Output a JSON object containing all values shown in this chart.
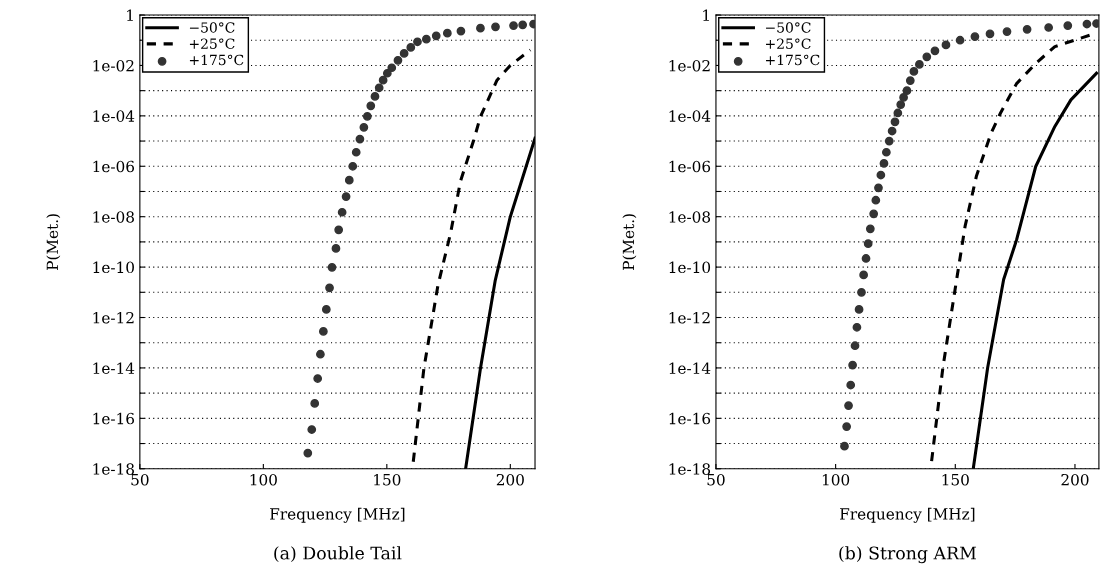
{
  "chart_data": [
    {
      "type": "line",
      "title": "(a) Double Tail",
      "xlabel": "Frequency [MHz]",
      "ylabel": "P(Met.)",
      "log": "y",
      "grid": "y",
      "legend": "top left",
      "xlim": [
        50,
        210
      ],
      "xticks": [
        50,
        100,
        150,
        200
      ],
      "ylim": [
        1e-18,
        1
      ],
      "yticks": [
        1,
        {
          "value": 0.1,
          "label": null
        },
        {
          "value": 0.01,
          "label": "1e-02"
        },
        {
          "value": 0.001,
          "label": null
        },
        {
          "value": 0.0001,
          "label": "1e-04"
        },
        {
          "value": 1e-05,
          "label": null
        },
        {
          "value": 1e-06,
          "label": "1e-06"
        },
        {
          "value": 1e-07,
          "label": null
        },
        {
          "value": 1e-08,
          "label": "1e-08"
        },
        {
          "value": 1e-09,
          "label": null
        },
        {
          "value": 1e-10,
          "label": "1e-10"
        },
        {
          "value": 1e-11,
          "label": null
        },
        {
          "value": 1e-12,
          "label": "1e-12"
        },
        {
          "value": 1e-13,
          "label": null
        },
        {
          "value": 1e-14,
          "label": "1e-14"
        },
        {
          "value": 1e-15,
          "label": null
        },
        {
          "value": 1e-16,
          "label": "1e-16"
        },
        {
          "value": 1e-17,
          "label": null
        },
        {
          "value": 1e-18,
          "label": "1e-18"
        }
      ],
      "series": [
        {
          "name": "−50°C",
          "line_style": "solid",
          "color": "#000000",
          "x": [
            181.9,
            187.9,
            193.9,
            200.0,
            210
          ],
          "values": [
            1e-18,
            9.5e-15,
            3e-11,
            1e-08,
            1.3e-05
          ]
        },
        {
          "name": "+25°C",
          "line_style": "dashed",
          "color": "#000000",
          "x": [
            160.7,
            165.0,
            170.7,
            175.8,
            179.8,
            185.2,
            187.9,
            194.6,
            200.0,
            208.1
          ],
          "values": [
            1.9e-18,
            9.5e-15,
            1.9e-11,
            2.2e-09,
            2.5e-07,
            1.1e-05,
            9.3e-05,
            0.0026,
            0.01,
            0.041
          ]
        },
        {
          "name": "+175°C",
          "type": "scatter",
          "marker": "circle",
          "color": "#333333",
          "x": [
            118.0,
            119.6,
            120.8,
            122.0,
            123.1,
            124.3,
            125.5,
            126.8,
            127.8,
            129.4,
            130.5,
            131.9,
            133.5,
            134.8,
            136.2,
            137.6,
            139.1,
            140.7,
            142.1,
            143.5,
            145.2,
            146.9,
            148.5,
            150.2,
            152.0,
            154.5,
            157.0,
            159.7,
            162.4,
            166,
            170,
            174.5,
            180,
            187.9,
            194,
            201.3,
            205,
            209.4
          ],
          "values": [
            4.2e-18,
            3.6e-17,
            3.9e-16,
            3.8e-15,
            3.5e-14,
            2.8e-13,
            2.1e-12,
            1.5e-11,
            9.8e-11,
            5.5e-10,
            3e-09,
            1.5e-08,
            6.3e-08,
            2.8e-07,
            1e-06,
            3.6e-06,
            1.2e-05,
            3.5e-05,
            9.5e-05,
            0.00025,
            0.00059,
            0.0013,
            0.0026,
            0.0049,
            0.0081,
            0.016,
            0.03,
            0.052,
            0.087,
            0.11,
            0.15,
            0.19,
            0.23,
            0.3,
            0.34,
            0.38,
            0.41,
            0.44
          ]
        }
      ]
    },
    {
      "type": "line",
      "title": "(b) Strong ARM",
      "xlabel": "Frequency [MHz]",
      "ylabel": "P(Met.)",
      "log": "y",
      "grid": "y",
      "legend": "top left",
      "xlim": [
        50,
        210
      ],
      "xticks": [
        50,
        100,
        150,
        200
      ],
      "ylim": [
        1e-18,
        1
      ],
      "yticks": [
        1,
        {
          "value": 0.1,
          "label": null
        },
        {
          "value": 0.01,
          "label": "1e-02"
        },
        {
          "value": 0.001,
          "label": null
        },
        {
          "value": 0.0001,
          "label": "1e-04"
        },
        {
          "value": 1e-05,
          "label": null
        },
        {
          "value": 1e-06,
          "label": "1e-06"
        },
        {
          "value": 1e-07,
          "label": null
        },
        {
          "value": 1e-08,
          "label": "1e-08"
        },
        {
          "value": 1e-09,
          "label": null
        },
        {
          "value": 1e-10,
          "label": "1e-10"
        },
        {
          "value": 1e-11,
          "label": null
        },
        {
          "value": 1e-12,
          "label": "1e-12"
        },
        {
          "value": 1e-13,
          "label": null
        },
        {
          "value": 1e-14,
          "label": "1e-14"
        },
        {
          "value": 1e-15,
          "label": null
        },
        {
          "value": 1e-16,
          "label": "1e-16"
        },
        {
          "value": 1e-17,
          "label": null
        },
        {
          "value": 1e-18,
          "label": "1e-18"
        }
      ],
      "series": [
        {
          "name": "−50°C",
          "line_style": "solid",
          "color": "#000000",
          "x": [
            157.5,
            163.5,
            170.2,
            175.6,
            183.6,
            191.6,
            198.3,
            209.0
          ],
          "values": [
            1e-18,
            1e-14,
            3.2e-11,
            1.2e-09,
            9.8e-07,
            3.8e-05,
            0.00043,
            0.0049
          ]
        },
        {
          "name": "+25°C",
          "line_style": "dashed",
          "color": "#000000",
          "x": [
            140.1,
            144.8,
            150.1,
            154.1,
            158.8,
            164.9,
            168.9,
            175.6,
            183.6,
            191.6,
            206.3
          ],
          "values": [
            2e-18,
            1e-14,
            1.7e-11,
            4.2e-09,
            4e-07,
            2e-05,
            0.00013,
            0.0019,
            0.012,
            0.056,
            0.16
          ]
        },
        {
          "name": "+175°C",
          "type": "scatter",
          "marker": "circle",
          "color": "#333333",
          "x": [
            103.7,
            104.6,
            105.4,
            106.3,
            107.1,
            108.1,
            108.9,
            109.8,
            110.8,
            111.7,
            112.7,
            113.6,
            114.5,
            115.9,
            116.8,
            117.9,
            118.9,
            120.2,
            121.2,
            122.4,
            123.6,
            124.8,
            126.0,
            127.2,
            128.4,
            129.8,
            131.2,
            132.7,
            135,
            138.1,
            141.5,
            146.1,
            152,
            158.2,
            164.5,
            171.6,
            180,
            189.0,
            197,
            205.0,
            209
          ],
          "values": [
            7.9e-18,
            4.7e-17,
            3.2e-16,
            2.1e-15,
            1.3e-14,
            7.6e-14,
            4.1e-13,
            2.1e-12,
            1e-11,
            4.9e-11,
            2.2e-10,
            8.5e-10,
            3.3e-09,
            1.3e-08,
            4.5e-08,
            1.4e-07,
            4.5e-07,
            1.3e-06,
            3.6e-06,
            1e-05,
            2.5e-05,
            5.8e-05,
            0.00013,
            0.00028,
            0.00054,
            0.001,
            0.0025,
            0.0058,
            0.011,
            0.022,
            0.038,
            0.065,
            0.1,
            0.14,
            0.18,
            0.22,
            0.27,
            0.32,
            0.38,
            0.44,
            0.46
          ]
        }
      ]
    }
  ]
}
